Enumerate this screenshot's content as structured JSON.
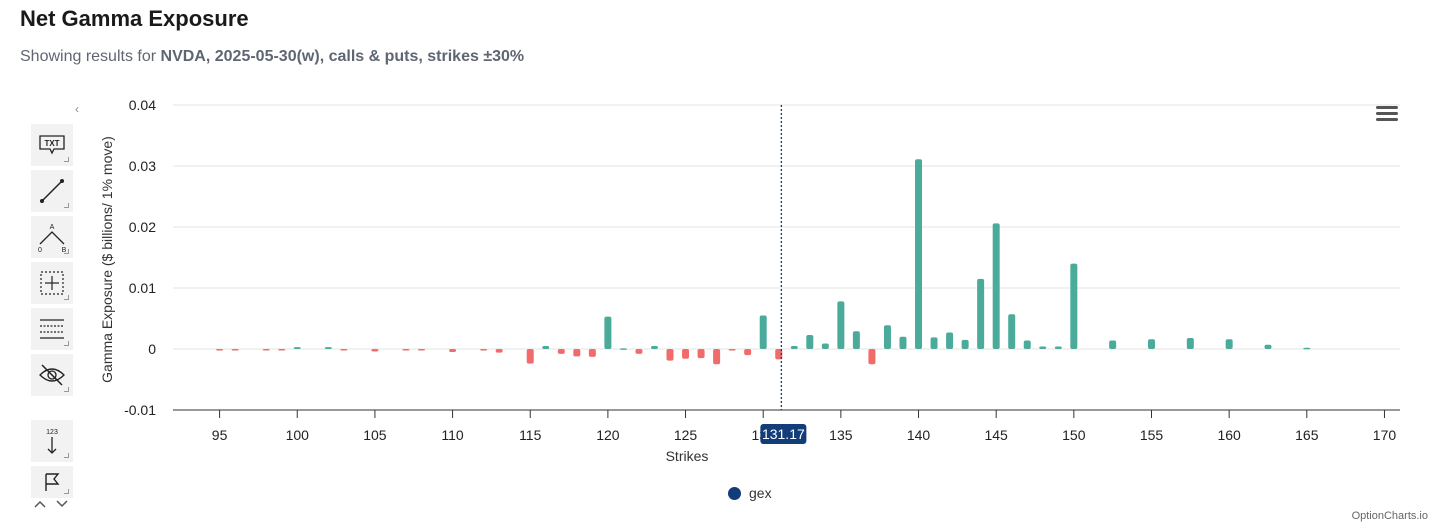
{
  "page": {
    "title": "Net Gamma Exposure",
    "subtitle_prefix": "Showing results for ",
    "subtitle_bold": "NVDA, 2025-05-30(w), calls & puts, strikes ±30%"
  },
  "toolbar": {
    "collapse_glyph": "‹",
    "tools": [
      {
        "icon": "text-annotation-icon",
        "label": "TXT"
      },
      {
        "icon": "line-tool-icon"
      },
      {
        "icon": "angle-measure-icon",
        "label_a": "A",
        "label_0": "0",
        "label_b": "B"
      },
      {
        "icon": "crosshair-icon"
      },
      {
        "icon": "horizontal-lines-icon"
      },
      {
        "icon": "hide-eye-icon"
      },
      {
        "icon": "measure-123-icon",
        "label": "123"
      },
      {
        "icon": "flag-icon"
      }
    ],
    "nav_up": "^",
    "nav_down": "v"
  },
  "chart_data": {
    "type": "bar",
    "title": "",
    "xlabel": "Strikes",
    "ylabel": "Gamma Exposure ($ billions/ 1% move)",
    "xlim": [
      92,
      171
    ],
    "ylim": [
      -0.01,
      0.04
    ],
    "x_ticks": [
      95,
      100,
      105,
      110,
      115,
      120,
      125,
      130,
      135,
      140,
      145,
      150,
      155,
      160,
      165,
      170
    ],
    "y_ticks": [
      -0.01,
      0,
      0.01,
      0.02,
      0.03,
      0.04
    ],
    "y_tick_labels": [
      "-0.01",
      "0",
      "0.01",
      "0.02",
      "0.03",
      "0.04"
    ],
    "grid": true,
    "positive_color": "#4aab9b",
    "negative_color": "#f26b6b",
    "crosshair": {
      "x": 131.17,
      "label": "131.17"
    },
    "legend": [
      {
        "name": "gex",
        "color": "#123d78",
        "position": "bottom-center"
      }
    ],
    "series": [
      {
        "name": "gex",
        "points": [
          {
            "x": 95,
            "y": -0.0001
          },
          {
            "x": 96,
            "y": -0.0001
          },
          {
            "x": 98,
            "y": -0.0001
          },
          {
            "x": 99,
            "y": -0.0001
          },
          {
            "x": 100,
            "y": 0.0003
          },
          {
            "x": 102,
            "y": 0.0003
          },
          {
            "x": 103,
            "y": -0.0001
          },
          {
            "x": 105,
            "y": -0.0004
          },
          {
            "x": 107,
            "y": -0.0001
          },
          {
            "x": 108,
            "y": -0.0002
          },
          {
            "x": 110,
            "y": -0.0005
          },
          {
            "x": 112,
            "y": -0.0001
          },
          {
            "x": 113,
            "y": -0.0006
          },
          {
            "x": 115,
            "y": -0.0024
          },
          {
            "x": 116,
            "y": 0.0005
          },
          {
            "x": 117,
            "y": -0.0008
          },
          {
            "x": 118,
            "y": -0.0012
          },
          {
            "x": 119,
            "y": -0.0013
          },
          {
            "x": 120,
            "y": 0.0053
          },
          {
            "x": 121,
            "y": 0.0001
          },
          {
            "x": 122,
            "y": -0.0008
          },
          {
            "x": 123,
            "y": 0.0005
          },
          {
            "x": 124,
            "y": -0.0019
          },
          {
            "x": 125,
            "y": -0.0016
          },
          {
            "x": 126,
            "y": -0.0015
          },
          {
            "x": 127,
            "y": -0.0025
          },
          {
            "x": 128,
            "y": -0.0002
          },
          {
            "x": 129,
            "y": -0.001
          },
          {
            "x": 130,
            "y": 0.0055
          },
          {
            "x": 131,
            "y": -0.0017
          },
          {
            "x": 132,
            "y": 0.0005
          },
          {
            "x": 133,
            "y": 0.0023
          },
          {
            "x": 134,
            "y": 0.0009
          },
          {
            "x": 135,
            "y": 0.0078
          },
          {
            "x": 136,
            "y": 0.0029
          },
          {
            "x": 137,
            "y": -0.0025
          },
          {
            "x": 138,
            "y": 0.0039
          },
          {
            "x": 139,
            "y": 0.002
          },
          {
            "x": 140,
            "y": 0.0311
          },
          {
            "x": 141,
            "y": 0.0019
          },
          {
            "x": 142,
            "y": 0.0027
          },
          {
            "x": 143,
            "y": 0.0015
          },
          {
            "x": 144,
            "y": 0.0115
          },
          {
            "x": 145,
            "y": 0.0206
          },
          {
            "x": 146,
            "y": 0.0057
          },
          {
            "x": 147,
            "y": 0.0014
          },
          {
            "x": 148,
            "y": 0.0004
          },
          {
            "x": 149,
            "y": 0.0004
          },
          {
            "x": 150,
            "y": 0.014
          },
          {
            "x": 152.5,
            "y": 0.0014
          },
          {
            "x": 155,
            "y": 0.0016
          },
          {
            "x": 157.5,
            "y": 0.0018
          },
          {
            "x": 160,
            "y": 0.0016
          },
          {
            "x": 162.5,
            "y": 0.0007
          },
          {
            "x": 165,
            "y": 0.0002
          }
        ]
      }
    ]
  },
  "legend_label": "gex",
  "credit": "OptionCharts.io"
}
